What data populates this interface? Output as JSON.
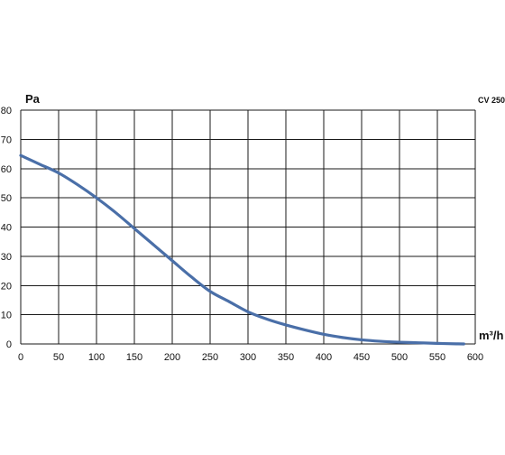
{
  "chart_data": {
    "type": "line",
    "title": "",
    "model_label": "CV 250",
    "xlabel": "m³/h",
    "ylabel": "Pa",
    "xlim": [
      0,
      600
    ],
    "ylim": [
      0,
      80
    ],
    "x_ticks": [
      0,
      50,
      100,
      150,
      200,
      250,
      300,
      350,
      400,
      450,
      500,
      550,
      600
    ],
    "y_ticks": [
      0,
      10,
      20,
      30,
      40,
      50,
      60,
      70,
      80
    ],
    "grid": true,
    "legend": "none",
    "series": [
      {
        "color": "#4a6fa8",
        "x": [
          0,
          25,
          50,
          75,
          100,
          125,
          150,
          175,
          200,
          225,
          250,
          275,
          300,
          325,
          350,
          375,
          400,
          425,
          450,
          475,
          500,
          525,
          550,
          575,
          585
        ],
        "y": [
          64.5,
          61.5,
          58.5,
          54.5,
          50,
          45,
          39.5,
          34,
          28.5,
          23,
          18,
          14.5,
          11,
          8.5,
          6.5,
          4.8,
          3.3,
          2.2,
          1.4,
          0.9,
          0.6,
          0.4,
          0.2,
          0.05,
          0
        ]
      }
    ]
  }
}
